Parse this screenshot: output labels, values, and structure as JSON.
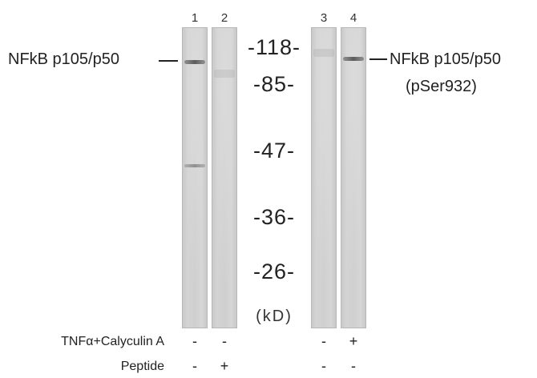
{
  "lanes": [
    "1",
    "2",
    "3",
    "4"
  ],
  "markers": [
    "-118-",
    "-85-",
    "-47-",
    "-36-",
    "-26-"
  ],
  "unit": "(kD)",
  "left_label": "NFkB p105/p50",
  "right_label": {
    "line1": "NFkB p105/p50",
    "line2": "(pSer932)"
  },
  "conditions": [
    {
      "label": "TNFα+Calyculin A",
      "values": [
        "-",
        "-",
        "-",
        "+"
      ]
    },
    {
      "label": "Peptide",
      "values": [
        "-",
        "+",
        "-",
        "-"
      ]
    }
  ]
}
